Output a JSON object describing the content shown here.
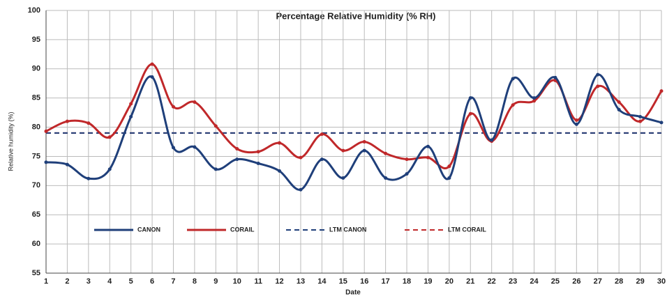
{
  "chart_data": {
    "type": "line",
    "title": "Percentage Relative Humidity (% RH)",
    "x_label": "Date",
    "y_label": "Relative humidity (%)",
    "x": [
      1,
      2,
      3,
      4,
      5,
      6,
      7,
      8,
      9,
      10,
      11,
      12,
      13,
      14,
      15,
      16,
      17,
      18,
      19,
      20,
      21,
      22,
      23,
      24,
      25,
      26,
      27,
      28,
      29,
      30
    ],
    "xlim": [
      1,
      30
    ],
    "xticks": [
      1,
      2,
      3,
      4,
      5,
      6,
      7,
      8,
      9,
      10,
      11,
      12,
      13,
      14,
      15,
      16,
      17,
      18,
      19,
      20,
      21,
      22,
      23,
      24,
      25,
      26,
      27,
      28,
      29,
      30
    ],
    "ylim": [
      55,
      100
    ],
    "yticks": [
      55,
      60,
      65,
      70,
      75,
      80,
      85,
      90,
      95,
      100
    ],
    "grid": true,
    "series": [
      {
        "name": "CANON",
        "color": "#1f3f7a",
        "style": "solid",
        "values": [
          74,
          73.6,
          71.2,
          72.8,
          81.8,
          88.6,
          76.5,
          76.6,
          72.8,
          74.5,
          73.8,
          72.5,
          69.3,
          74.5,
          71.3,
          76,
          71.3,
          72,
          76.7,
          71.3,
          85,
          77.8,
          88.3,
          85,
          88.5,
          80.5,
          89,
          83,
          81.8,
          80.8
        ]
      },
      {
        "name": "CORAIL",
        "color": "#c0282a",
        "style": "solid",
        "values": [
          79.3,
          81,
          80.7,
          78.3,
          84,
          90.8,
          83.5,
          84.3,
          80.2,
          76.3,
          75.8,
          77.3,
          74.8,
          78.8,
          76,
          77.5,
          75.5,
          74.5,
          74.8,
          73.3,
          82.3,
          77.6,
          83.8,
          84.5,
          88,
          81.2,
          87,
          84.3,
          81,
          86.2
        ]
      },
      {
        "name": "LTM CANON",
        "color": "#1f3f7a",
        "style": "dashed",
        "values": [
          79,
          79,
          79,
          79,
          79,
          79,
          79,
          79,
          79,
          79,
          79,
          79,
          79,
          79,
          79,
          79,
          79,
          79,
          79,
          79,
          79,
          79,
          79,
          79,
          79,
          79,
          79,
          79,
          79,
          79
        ]
      },
      {
        "name": "LTM CORAIL",
        "color": "#c0282a",
        "style": "dashed",
        "values": [
          79,
          79,
          79,
          79,
          79,
          79,
          79,
          79,
          79,
          79,
          79,
          79,
          79,
          79,
          79,
          79,
          79,
          79,
          79,
          79,
          79,
          79,
          79,
          79,
          79,
          79,
          79,
          79,
          79,
          79
        ]
      }
    ]
  }
}
